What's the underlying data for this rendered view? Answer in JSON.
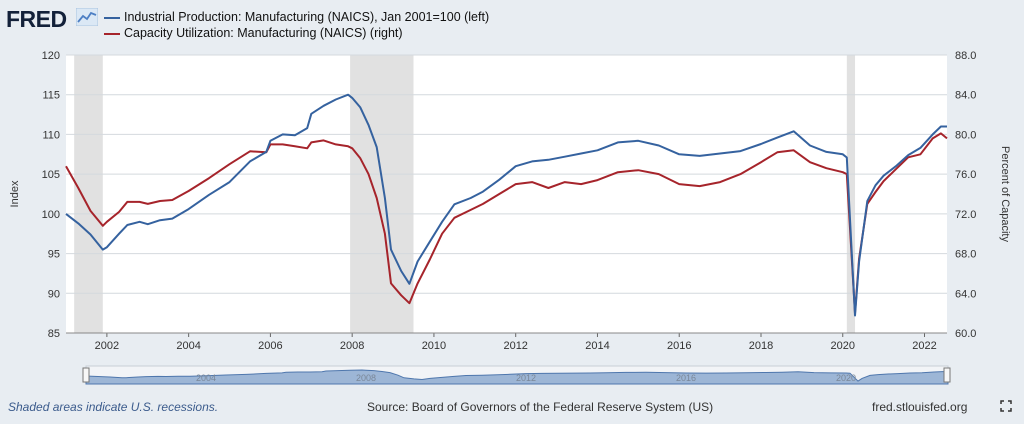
{
  "logo_text": "FRED",
  "colors": {
    "blue": "#35629f",
    "red": "#a6242b",
    "recession": "#e1e1e1",
    "grid": "#d4d9de"
  },
  "legend": [
    {
      "label": "Industrial Production: Manufacturing (NAICS), Jan 2001=100 (left)",
      "color": "#35629f"
    },
    {
      "label": "Capacity Utilization: Manufacturing (NAICS) (right)",
      "color": "#a6242b"
    }
  ],
  "footer": {
    "recession_note": "Shaded areas indicate U.S. recessions.",
    "source": "Source: Board of Governors of the Federal Reserve System (US)",
    "url": "fred.stlouisfed.org"
  },
  "chart_data": {
    "type": "line",
    "x_range": [
      2001.0,
      2022.55
    ],
    "y_left": {
      "label": "Index",
      "ylim": [
        85,
        120
      ],
      "ticks": [
        "85",
        "90",
        "95",
        "100",
        "105",
        "110",
        "115",
        "120"
      ]
    },
    "y_right": {
      "label": "Percent of Capacity",
      "ylim": [
        60,
        88
      ],
      "ticks": [
        "60.0",
        "64.0",
        "68.0",
        "72.0",
        "76.0",
        "80.0",
        "84.0",
        "88.0"
      ]
    },
    "x_ticks": [
      "2002",
      "2004",
      "2006",
      "2008",
      "2010",
      "2012",
      "2014",
      "2016",
      "2018",
      "2020",
      "2022"
    ],
    "recessions": [
      [
        2001.2,
        2001.9
      ],
      [
        2007.95,
        2009.5
      ],
      [
        2020.1,
        2020.3
      ]
    ],
    "series": [
      {
        "name": "Industrial Production: Manufacturing (NAICS), Jan 2001=100",
        "axis": "left",
        "points": [
          [
            2001.0,
            100.0
          ],
          [
            2001.3,
            98.8
          ],
          [
            2001.6,
            97.4
          ],
          [
            2001.9,
            95.5
          ],
          [
            2002.0,
            95.8
          ],
          [
            2002.3,
            97.5
          ],
          [
            2002.5,
            98.6
          ],
          [
            2002.8,
            99.0
          ],
          [
            2003.0,
            98.7
          ],
          [
            2003.3,
            99.2
          ],
          [
            2003.6,
            99.4
          ],
          [
            2004.0,
            100.6
          ],
          [
            2004.5,
            102.4
          ],
          [
            2005.0,
            104.0
          ],
          [
            2005.5,
            106.6
          ],
          [
            2005.9,
            107.8
          ],
          [
            2006.0,
            109.2
          ],
          [
            2006.3,
            110.0
          ],
          [
            2006.6,
            109.9
          ],
          [
            2006.9,
            110.8
          ],
          [
            2007.0,
            112.6
          ],
          [
            2007.3,
            113.6
          ],
          [
            2007.6,
            114.4
          ],
          [
            2007.9,
            115.0
          ],
          [
            2008.0,
            114.6
          ],
          [
            2008.2,
            113.4
          ],
          [
            2008.4,
            111.2
          ],
          [
            2008.6,
            108.4
          ],
          [
            2008.8,
            102.0
          ],
          [
            2008.95,
            95.5
          ],
          [
            2009.2,
            92.8
          ],
          [
            2009.4,
            91.2
          ],
          [
            2009.6,
            94.0
          ],
          [
            2009.9,
            96.5
          ],
          [
            2010.2,
            99.0
          ],
          [
            2010.5,
            101.2
          ],
          [
            2010.9,
            102.0
          ],
          [
            2011.2,
            102.8
          ],
          [
            2011.6,
            104.3
          ],
          [
            2012.0,
            106.0
          ],
          [
            2012.4,
            106.6
          ],
          [
            2012.8,
            106.8
          ],
          [
            2013.2,
            107.2
          ],
          [
            2013.6,
            107.6
          ],
          [
            2014.0,
            108.0
          ],
          [
            2014.5,
            109.0
          ],
          [
            2015.0,
            109.2
          ],
          [
            2015.5,
            108.6
          ],
          [
            2016.0,
            107.5
          ],
          [
            2016.5,
            107.3
          ],
          [
            2017.0,
            107.6
          ],
          [
            2017.5,
            107.9
          ],
          [
            2018.0,
            108.8
          ],
          [
            2018.4,
            109.6
          ],
          [
            2018.8,
            110.4
          ],
          [
            2019.2,
            108.6
          ],
          [
            2019.6,
            107.8
          ],
          [
            2020.0,
            107.5
          ],
          [
            2020.1,
            107.1
          ],
          [
            2020.3,
            87.2
          ],
          [
            2020.4,
            94.0
          ],
          [
            2020.6,
            101.6
          ],
          [
            2020.8,
            103.6
          ],
          [
            2021.0,
            104.8
          ],
          [
            2021.3,
            106.0
          ],
          [
            2021.6,
            107.4
          ],
          [
            2021.9,
            108.3
          ],
          [
            2022.2,
            110.0
          ],
          [
            2022.4,
            111.0
          ],
          [
            2022.55,
            111.0
          ]
        ]
      },
      {
        "name": "Capacity Utilization: Manufacturing (NAICS)",
        "axis": "right",
        "points": [
          [
            2001.0,
            76.8
          ],
          [
            2001.3,
            74.6
          ],
          [
            2001.6,
            72.3
          ],
          [
            2001.9,
            70.8
          ],
          [
            2002.0,
            71.2
          ],
          [
            2002.3,
            72.2
          ],
          [
            2002.5,
            73.2
          ],
          [
            2002.8,
            73.2
          ],
          [
            2003.0,
            73.0
          ],
          [
            2003.3,
            73.3
          ],
          [
            2003.6,
            73.4
          ],
          [
            2004.0,
            74.3
          ],
          [
            2004.5,
            75.6
          ],
          [
            2005.0,
            77.0
          ],
          [
            2005.5,
            78.3
          ],
          [
            2005.9,
            78.2
          ],
          [
            2006.0,
            79.0
          ],
          [
            2006.3,
            79.0
          ],
          [
            2006.6,
            78.8
          ],
          [
            2006.9,
            78.6
          ],
          [
            2007.0,
            79.2
          ],
          [
            2007.3,
            79.4
          ],
          [
            2007.6,
            79.0
          ],
          [
            2007.9,
            78.8
          ],
          [
            2008.0,
            78.6
          ],
          [
            2008.2,
            77.6
          ],
          [
            2008.4,
            76.0
          ],
          [
            2008.6,
            73.6
          ],
          [
            2008.8,
            70.0
          ],
          [
            2008.95,
            65.0
          ],
          [
            2009.2,
            63.8
          ],
          [
            2009.4,
            63.0
          ],
          [
            2009.6,
            65.0
          ],
          [
            2009.9,
            67.4
          ],
          [
            2010.2,
            70.0
          ],
          [
            2010.5,
            71.6
          ],
          [
            2010.9,
            72.4
          ],
          [
            2011.2,
            73.0
          ],
          [
            2011.6,
            74.0
          ],
          [
            2012.0,
            75.0
          ],
          [
            2012.4,
            75.2
          ],
          [
            2012.8,
            74.6
          ],
          [
            2013.2,
            75.2
          ],
          [
            2013.6,
            75.0
          ],
          [
            2014.0,
            75.4
          ],
          [
            2014.5,
            76.2
          ],
          [
            2015.0,
            76.4
          ],
          [
            2015.5,
            76.0
          ],
          [
            2016.0,
            75.0
          ],
          [
            2016.5,
            74.8
          ],
          [
            2017.0,
            75.2
          ],
          [
            2017.5,
            76.0
          ],
          [
            2018.0,
            77.2
          ],
          [
            2018.4,
            78.2
          ],
          [
            2018.8,
            78.4
          ],
          [
            2019.2,
            77.2
          ],
          [
            2019.6,
            76.6
          ],
          [
            2020.0,
            76.2
          ],
          [
            2020.1,
            76.0
          ],
          [
            2020.3,
            62.0
          ],
          [
            2020.4,
            67.5
          ],
          [
            2020.6,
            73.0
          ],
          [
            2020.8,
            74.2
          ],
          [
            2021.0,
            75.3
          ],
          [
            2021.3,
            76.5
          ],
          [
            2021.6,
            77.7
          ],
          [
            2021.9,
            78.0
          ],
          [
            2022.2,
            79.6
          ],
          [
            2022.4,
            80.1
          ],
          [
            2022.55,
            79.6
          ]
        ]
      }
    ],
    "navigator": {
      "years": [
        "2004",
        "2008",
        "2012",
        "2016",
        "2020"
      ]
    }
  }
}
